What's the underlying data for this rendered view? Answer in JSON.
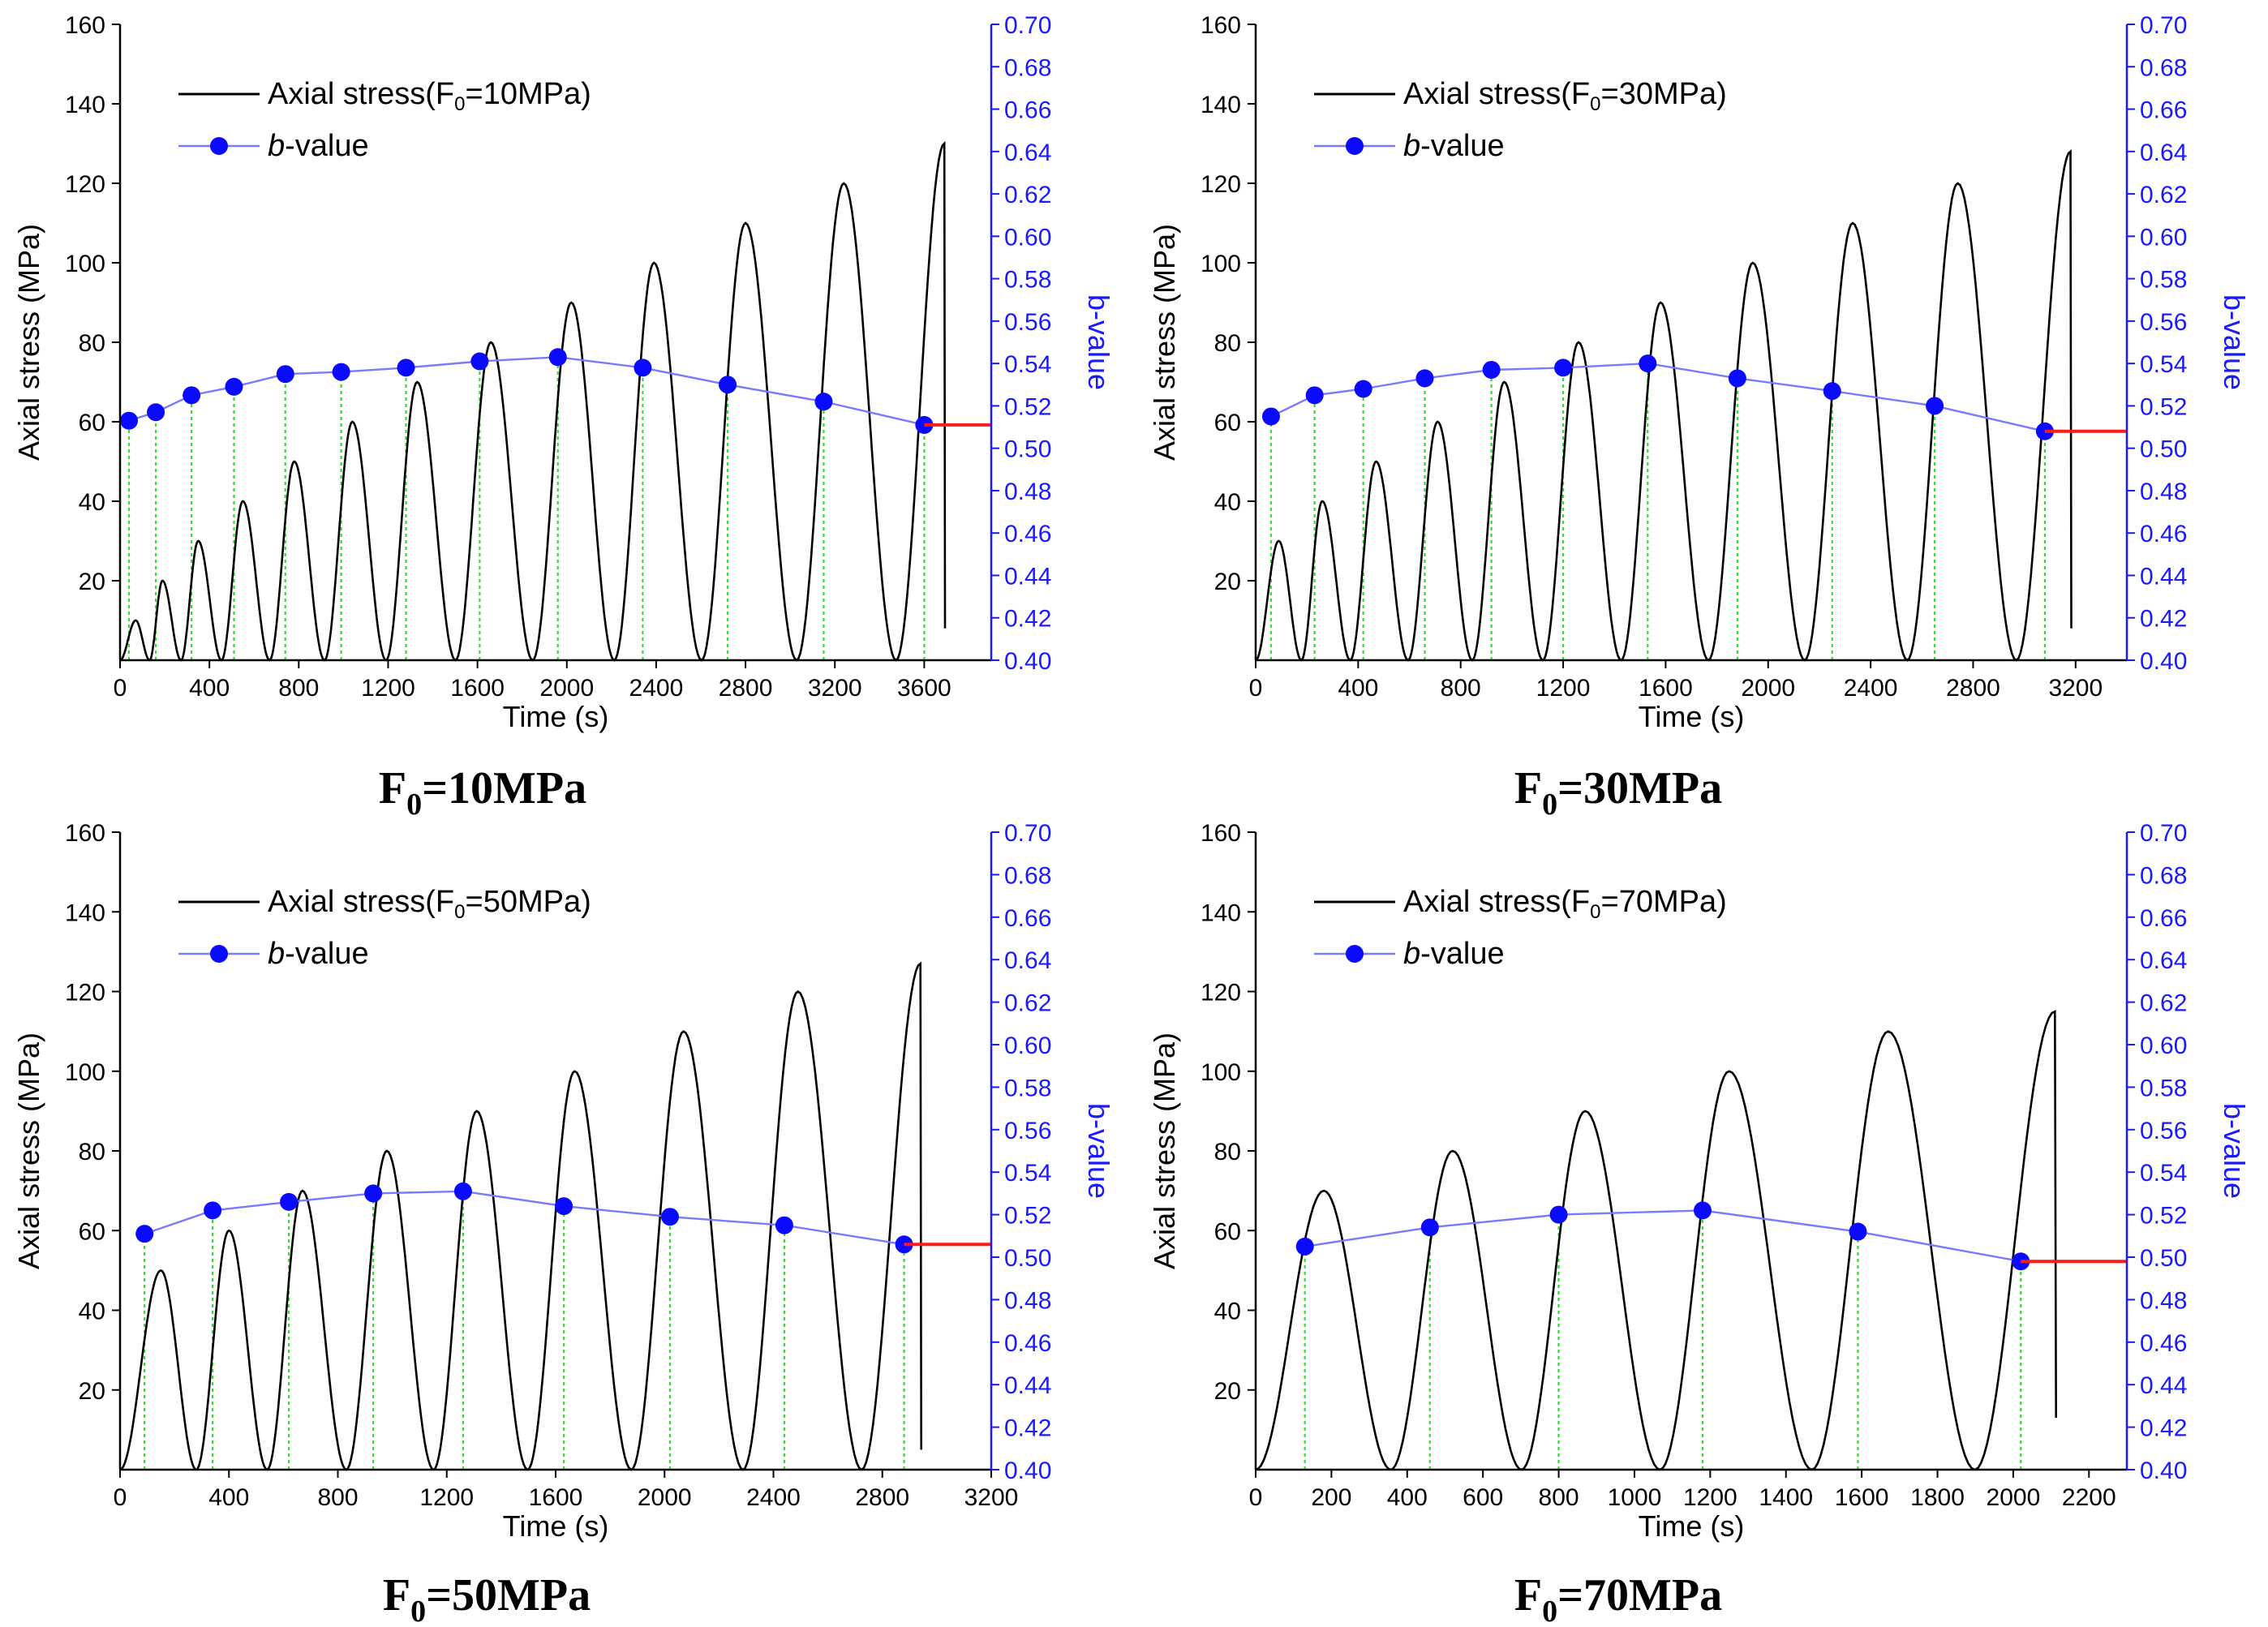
{
  "chart_data": [
    {
      "type": "line",
      "title_main": "F",
      "title_sub": "0",
      "title_rest": "=10MPa",
      "xlabel": "Time (s)",
      "ylabel": "Axial stress (MPa)",
      "y2label": "b-value",
      "xlim": [
        0,
        3900
      ],
      "xticks": [
        0,
        400,
        800,
        1200,
        1600,
        2000,
        2400,
        2800,
        3200,
        3600
      ],
      "ylim": [
        0,
        160
      ],
      "yticks": [
        20,
        40,
        60,
        80,
        100,
        120,
        140,
        160
      ],
      "y2lim": [
        0.4,
        0.7
      ],
      "y2ticks": [
        "0.40",
        "0.42",
        "0.44",
        "0.46",
        "0.48",
        "0.50",
        "0.52",
        "0.54",
        "0.56",
        "0.58",
        "0.60",
        "0.62",
        "0.64",
        "0.66",
        "0.68",
        "0.70"
      ],
      "legend": {
        "stress_pre": "Axial stress(F",
        "stress_sub": "0",
        "stress_post": "=10MPa)",
        "b_italic": "b",
        "b_rest": "-value"
      },
      "stress": {
        "start": 0,
        "peaks_x": [
          70,
          190,
          350,
          550,
          780,
          1040,
          1330,
          1660,
          2020,
          2390,
          2800,
          3240,
          3690
        ],
        "peaks_y": [
          10,
          20,
          30,
          40,
          50,
          60,
          70,
          80,
          90,
          100,
          110,
          120,
          130
        ],
        "final_drop_y": 8
      },
      "b_value": {
        "x": [
          40,
          160,
          320,
          510,
          740,
          990,
          1280,
          1610,
          1960,
          2340,
          2720,
          3150,
          3600
        ],
        "y": [
          0.513,
          0.517,
          0.525,
          0.529,
          0.535,
          0.536,
          0.538,
          0.541,
          0.543,
          0.538,
          0.53,
          0.522,
          0.511
        ]
      },
      "failure_line_x_end": 3900
    },
    {
      "type": "line",
      "title_main": "F",
      "title_sub": "0",
      "title_rest": "=30MPa",
      "xlabel": "Time (s)",
      "ylabel": "Axial stress (MPa)",
      "y2label": "b-value",
      "xlim": [
        0,
        3400
      ],
      "xticks": [
        0,
        400,
        800,
        1200,
        1600,
        2000,
        2400,
        2800,
        3200
      ],
      "ylim": [
        0,
        160
      ],
      "yticks": [
        20,
        40,
        60,
        80,
        100,
        120,
        140,
        160
      ],
      "y2lim": [
        0.4,
        0.7
      ],
      "y2ticks": [
        "0.40",
        "0.42",
        "0.44",
        "0.46",
        "0.48",
        "0.50",
        "0.52",
        "0.54",
        "0.56",
        "0.58",
        "0.60",
        "0.62",
        "0.64",
        "0.66",
        "0.68",
        "0.70"
      ],
      "legend": {
        "stress_pre": "Axial stress(F",
        "stress_sub": "0",
        "stress_post": "=30MPa)",
        "b_italic": "b",
        "b_rest": "-value"
      },
      "stress": {
        "start": 0,
        "peaks_x": [
          90,
          260,
          470,
          710,
          970,
          1260,
          1580,
          1940,
          2330,
          2740,
          3180
        ],
        "peaks_y": [
          30,
          40,
          50,
          60,
          70,
          80,
          90,
          100,
          110,
          120,
          128
        ],
        "final_drop_y": 8
      },
      "b_value": {
        "x": [
          60,
          230,
          420,
          660,
          920,
          1200,
          1530,
          1880,
          2250,
          2650,
          3080
        ],
        "y": [
          0.515,
          0.525,
          0.528,
          0.533,
          0.537,
          0.538,
          0.54,
          0.533,
          0.527,
          0.52,
          0.508
        ]
      },
      "failure_line_x_end": 3400
    },
    {
      "type": "line",
      "title_main": "F",
      "title_sub": "0",
      "title_rest": "=50MPa",
      "xlabel": "Time (s)",
      "ylabel": "Axial stress (MPa)",
      "y2label": "b-value",
      "xlim": [
        0,
        3200
      ],
      "xticks": [
        0,
        400,
        800,
        1200,
        1600,
        2000,
        2400,
        2800,
        3200
      ],
      "ylim": [
        0,
        160
      ],
      "yticks": [
        20,
        40,
        60,
        80,
        100,
        120,
        140,
        160
      ],
      "y2lim": [
        0.4,
        0.7
      ],
      "y2ticks": [
        "0.40",
        "0.42",
        "0.44",
        "0.46",
        "0.48",
        "0.50",
        "0.52",
        "0.54",
        "0.56",
        "0.58",
        "0.60",
        "0.62",
        "0.64",
        "0.66",
        "0.68",
        "0.70"
      ],
      "legend": {
        "stress_pre": "Axial stress(F",
        "stress_sub": "0",
        "stress_post": "=50MPa)",
        "b_italic": "b",
        "b_rest": "-value"
      },
      "stress": {
        "start": 0,
        "peaks_x": [
          150,
          400,
          670,
          980,
          1310,
          1670,
          2070,
          2490,
          2940
        ],
        "peaks_y": [
          50,
          60,
          70,
          80,
          90,
          100,
          110,
          120,
          127
        ],
        "final_drop_y": 5
      },
      "b_value": {
        "x": [
          90,
          340,
          620,
          930,
          1260,
          1630,
          2020,
          2440,
          2880
        ],
        "y": [
          0.511,
          0.522,
          0.526,
          0.53,
          0.531,
          0.524,
          0.519,
          0.515,
          0.506
        ]
      },
      "failure_line_x_end": 3200
    },
    {
      "type": "line",
      "title_main": "F",
      "title_sub": "0",
      "title_rest": "=70MPa",
      "xlabel": "Time (s)",
      "ylabel": "Axial stress (MPa)",
      "y2label": "b-value",
      "xlim": [
        0,
        2300
      ],
      "xticks": [
        0,
        200,
        400,
        600,
        800,
        1000,
        1200,
        1400,
        1600,
        1800,
        2000,
        2200
      ],
      "ylim": [
        0,
        160
      ],
      "yticks": [
        20,
        40,
        60,
        80,
        100,
        120,
        140,
        160
      ],
      "y2lim": [
        0.4,
        0.7
      ],
      "y2ticks": [
        "0.40",
        "0.42",
        "0.44",
        "0.46",
        "0.48",
        "0.50",
        "0.52",
        "0.54",
        "0.56",
        "0.58",
        "0.60",
        "0.62",
        "0.64",
        "0.66",
        "0.68",
        "0.70"
      ],
      "legend": {
        "stress_pre": "Axial stress(F",
        "stress_sub": "0",
        "stress_post": "=70MPa)",
        "b_italic": "b",
        "b_rest": "-value"
      },
      "stress": {
        "start": 0,
        "peaks_x": [
          180,
          520,
          870,
          1250,
          1670,
          2110
        ],
        "peaks_y": [
          70,
          80,
          90,
          100,
          110,
          115
        ],
        "final_drop_y": 13
      },
      "b_value": {
        "x": [
          130,
          460,
          800,
          1180,
          1590,
          2020
        ],
        "y": [
          0.505,
          0.514,
          0.52,
          0.522,
          0.512,
          0.498
        ]
      },
      "failure_line_x_end": 2300
    }
  ]
}
